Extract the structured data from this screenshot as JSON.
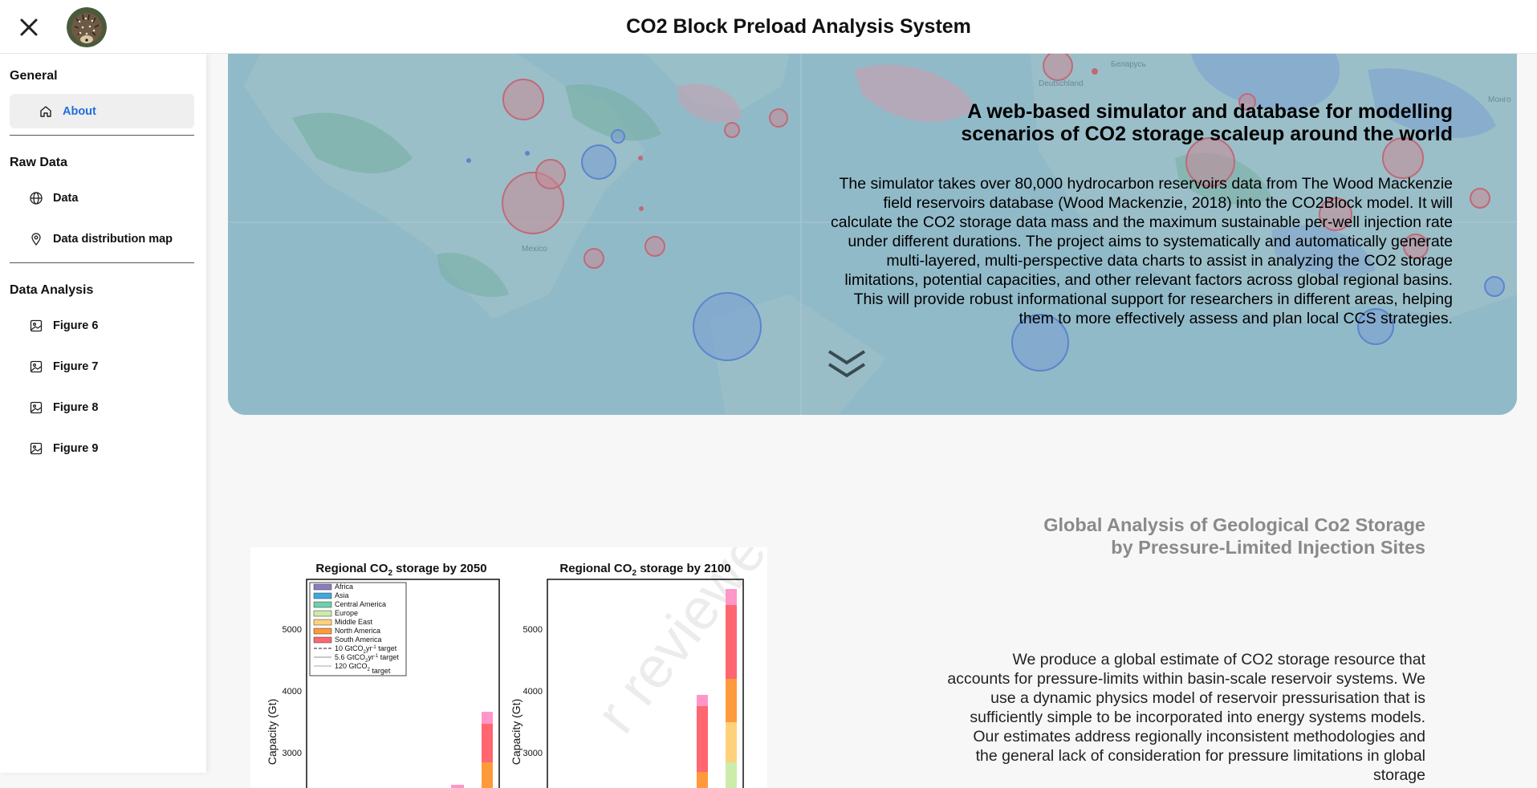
{
  "app": {
    "title": "CO2 Block Preload Analysis System"
  },
  "header": {
    "close_icon": "close-icon",
    "avatar_icon": "hedgehog-avatar"
  },
  "sidebar": {
    "groups": [
      {
        "title": "General",
        "items": [
          {
            "label": "About",
            "icon": "home-icon",
            "active": true
          }
        ]
      },
      {
        "title": "Raw Data",
        "items": [
          {
            "label": "Data",
            "icon": "globe-icon"
          },
          {
            "label": "Data distribution map",
            "icon": "map-pin-icon"
          }
        ]
      },
      {
        "title": "Data Analysis",
        "items": [
          {
            "label": "Figure 6",
            "icon": "image-icon"
          },
          {
            "label": "Figure 7",
            "icon": "image-icon"
          },
          {
            "label": "Figure 8",
            "icon": "image-icon"
          },
          {
            "label": "Figure 9",
            "icon": "image-icon"
          }
        ]
      }
    ],
    "accent_color": "#1e6fd9"
  },
  "hero": {
    "title": "A web-based simulator and database for modelling scenarios of CO2 storage scaleup around the world",
    "description": "The simulator takes over 80,000 hydrocarbon reservoirs data from The Wood Mackenzie field reservoirs database (Wood Mackenzie, 2018) into the CO2Block model. It will calculate the CO2 storage data mass and the maximum sustainable per-well injection rate under different durations. The project aims to systematically and automatically generate multi-layered, multi-perspective data charts to assist in analyzing the CO2 storage limitations, potential capacities, and other relevant factors across global regional basins. This will provide robust informational support for researchers in different areas, helping them to more effectively assess and plan local CCS strategies.",
    "scroll_icon": "double-chevron-down-icon",
    "map_labels": [
      "Беларусь",
      "Deutschland",
      "Монго",
      "Mexico"
    ]
  },
  "section": {
    "title": "Global Analysis of Geological Co2 Storage by Pressure-Limited Injection Sites",
    "body": "We produce a global estimate of CO2 storage resource that accounts for pressure-limits within basin-scale reservoir systems. We use a dynamic physics model of reservoir pressurisation that is sufficiently simple to be incorporated into energy systems models. Our estimates address regionally inconsistent methodologies and the general lack of consideration for pressure limitations in global storage"
  },
  "figure": {
    "watermark": "r reviewe",
    "panels": [
      {
        "title": "Regional CO",
        "sub": "2",
        "title_tail": " storage by 2050",
        "yticks": [
          "5000",
          "4000",
          "3000"
        ],
        "ylabel": "Capacity (Gt)"
      },
      {
        "title": "Regional CO",
        "sub": "2",
        "title_tail": " storage by 2100",
        "yticks": [
          "5000",
          "4000",
          "3000"
        ],
        "ylabel": "Capacity (Gt)"
      }
    ],
    "legend": [
      {
        "label": "Africa",
        "color": "#8e7cc3"
      },
      {
        "label": "Asia",
        "color": "#3fa9dd"
      },
      {
        "label": "Central America",
        "color": "#6fcfb0"
      },
      {
        "label": "Europe",
        "color": "#ccecaa"
      },
      {
        "label": "Middle East",
        "color": "#ffd27a"
      },
      {
        "label": "North America",
        "color": "#ff9a3c"
      },
      {
        "label": "South America",
        "color": "#ff6670"
      }
    ],
    "legend_lines": [
      {
        "pre": "10 GtCO",
        "sub": "2",
        "mid": "yr",
        "sup": "-1",
        "post": " target"
      },
      {
        "pre": "5.6 GtCO",
        "sub": "2",
        "mid": "yr",
        "sup": "-1",
        "post": " target"
      },
      {
        "pre": "120 GtCO",
        "sub": "2",
        "mid": "",
        "sup": "",
        "post": " target"
      }
    ]
  }
}
